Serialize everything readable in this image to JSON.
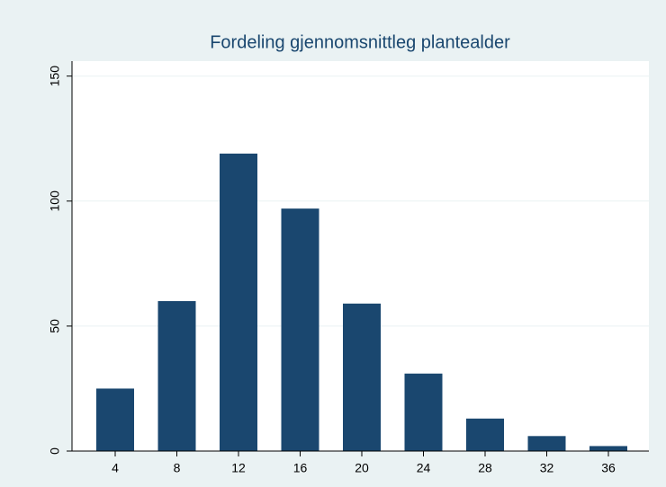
{
  "chart_data": {
    "type": "bar",
    "title": "Fordeling gjennomsnittleg plantealder",
    "categories": [
      "4",
      "8",
      "12",
      "16",
      "20",
      "24",
      "28",
      "32",
      "36"
    ],
    "values": [
      25,
      60,
      119,
      97,
      59,
      31,
      13,
      6,
      2
    ],
    "color": "#1a476f",
    "ylim": [
      0,
      156
    ],
    "yticks": [
      0,
      50,
      100,
      150
    ],
    "grid": true
  }
}
